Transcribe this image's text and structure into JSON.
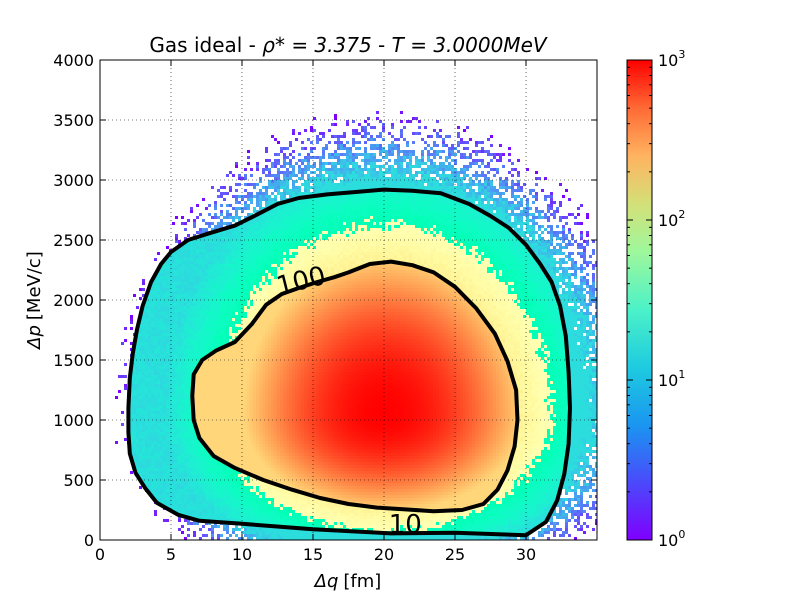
{
  "chart_data": {
    "type": "heatmap",
    "title_prefix": "Gas ideal - ",
    "title_rho": "ρ* = 3.375",
    "title_sep": " - ",
    "title_T": "T = 3.0000MeV",
    "xlabel_sym": "Δq",
    "xlabel_unit": "[fm]",
    "ylabel_sym": "Δp",
    "ylabel_unit": "[MeV/c]",
    "xlim": [
      0,
      35
    ],
    "ylim": [
      0,
      4000
    ],
    "x_ticks": [
      0,
      5,
      10,
      15,
      20,
      25,
      30
    ],
    "x_tick_labels": [
      "0",
      "5",
      "10",
      "15",
      "20",
      "25",
      "30"
    ],
    "y_ticks": [
      0,
      500,
      1000,
      1500,
      2000,
      2500,
      3000,
      3500,
      4000
    ],
    "y_tick_labels": [
      "0",
      "500",
      "1000",
      "1500",
      "2000",
      "2500",
      "3000",
      "3500",
      "4000"
    ],
    "grid": true,
    "colormap": "rainbow",
    "color_scale": "log",
    "colorbar_range": [
      1,
      1000
    ],
    "colorbar_tick_labels": [
      {
        "base": "10",
        "exp": "0",
        "value": 1
      },
      {
        "base": "10",
        "exp": "1",
        "value": 10
      },
      {
        "base": "10",
        "exp": "2",
        "value": 100
      },
      {
        "base": "10",
        "exp": "3",
        "value": 1000
      }
    ],
    "density_model": {
      "peak_count": 1000,
      "center": {
        "q": 20,
        "p": 1050
      },
      "note_levels": [
        10,
        100
      ]
    },
    "contours": [
      {
        "level": 10,
        "label": "10",
        "points": [
          [
            30,
            40
          ],
          [
            25,
            60
          ],
          [
            20.5,
            55
          ],
          [
            15,
            90
          ],
          [
            10,
            135
          ],
          [
            7,
            160
          ],
          [
            5.5,
            210
          ],
          [
            4,
            310
          ],
          [
            3.2,
            430
          ],
          [
            2.5,
            560
          ],
          [
            2.1,
            720
          ],
          [
            2.0,
            900
          ],
          [
            2.0,
            1100
          ],
          [
            2.1,
            1350
          ],
          [
            2.3,
            1550
          ],
          [
            2.6,
            1750
          ],
          [
            3.0,
            1950
          ],
          [
            3.6,
            2150
          ],
          [
            4.3,
            2300
          ],
          [
            5.0,
            2400
          ],
          [
            6.2,
            2500
          ],
          [
            7.8,
            2560
          ],
          [
            9.5,
            2620
          ],
          [
            11.2,
            2720
          ],
          [
            12.5,
            2800
          ],
          [
            14,
            2850
          ],
          [
            16,
            2880
          ],
          [
            18,
            2900
          ],
          [
            20,
            2920
          ],
          [
            22,
            2910
          ],
          [
            24,
            2890
          ],
          [
            26,
            2800
          ],
          [
            27.5,
            2700
          ],
          [
            28.8,
            2600
          ],
          [
            30,
            2460
          ],
          [
            31,
            2300
          ],
          [
            31.8,
            2150
          ],
          [
            32.4,
            1950
          ],
          [
            32.8,
            1700
          ],
          [
            33.0,
            1400
          ],
          [
            33.1,
            1100
          ],
          [
            33.0,
            800
          ],
          [
            32.7,
            550
          ],
          [
            32.2,
            330
          ],
          [
            31.4,
            150
          ],
          [
            30,
            40
          ]
        ]
      },
      {
        "level": 100,
        "label": "100",
        "points": [
          [
            17.5,
            2230
          ],
          [
            19,
            2300
          ],
          [
            20.5,
            2320
          ],
          [
            22,
            2290
          ],
          [
            23.5,
            2230
          ],
          [
            25,
            2110
          ],
          [
            26.5,
            1930
          ],
          [
            27.8,
            1720
          ],
          [
            28.7,
            1490
          ],
          [
            29.3,
            1250
          ],
          [
            29.4,
            1000
          ],
          [
            29.2,
            780
          ],
          [
            28.7,
            580
          ],
          [
            28,
            420
          ],
          [
            27,
            300
          ],
          [
            25.5,
            250
          ],
          [
            23.5,
            240
          ],
          [
            21.5,
            255
          ],
          [
            19.5,
            270
          ],
          [
            17.5,
            300
          ],
          [
            15.5,
            350
          ],
          [
            13.5,
            420
          ],
          [
            11.5,
            500
          ],
          [
            9.5,
            600
          ],
          [
            8,
            700
          ],
          [
            7,
            850
          ],
          [
            6.6,
            1000
          ],
          [
            6.5,
            1200
          ],
          [
            6.6,
            1380
          ],
          [
            7.2,
            1500
          ],
          [
            8.2,
            1580
          ],
          [
            9.5,
            1650
          ],
          [
            10.7,
            1800
          ],
          [
            11.7,
            1960
          ],
          [
            12.8,
            2050
          ],
          [
            14,
            2100
          ],
          [
            15.3,
            2150
          ],
          [
            16.5,
            2190
          ],
          [
            17.5,
            2230
          ]
        ]
      }
    ],
    "contour_label_positions": [
      {
        "label": "100",
        "q": 14.3,
        "p": 2090
      },
      {
        "label": "10",
        "q": 21.5,
        "p": 60
      }
    ]
  }
}
